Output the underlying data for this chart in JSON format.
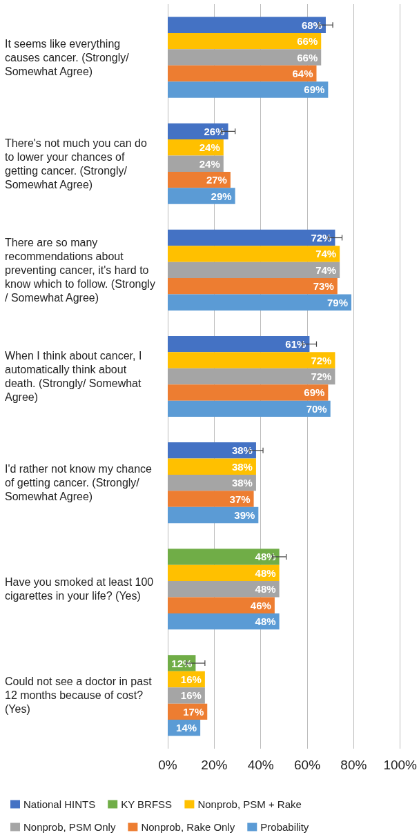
{
  "chart_data": {
    "type": "bar",
    "orientation": "horizontal",
    "categories": [
      "It seems like everything causes cancer. (Strongly/ Somewhat Agree)",
      "There's not much you can do to lower your chances of getting cancer. (Strongly/Somewhat Agree)",
      "There are so many recommendations about preventing cancer, it's hard to know which to follow. (Strongly/ Somewhat Agree)",
      "When I think about cancer, I automatically think about death. (Strongly/ Somewhat Agree)",
      "I'd rather not know my chance of getting cancer. (Strongly/Somewhat Agree)",
      "Have you smoked at least 100 cigarettes in your life? (Yes)",
      "Could not see a doctor in past 12 months because of cost? (Yes)"
    ],
    "series": [
      {
        "name": "National HINTS",
        "color": "#4472c4",
        "values": [
          68,
          26,
          72,
          61,
          38,
          null,
          null
        ],
        "errors": [
          3,
          3,
          3,
          3,
          3,
          null,
          null
        ],
        "value_labels": [
          "68%",
          "26%",
          "72%",
          "61%",
          "38%",
          null,
          null
        ]
      },
      {
        "name": "KY BRFSS",
        "color": "#70ad47",
        "values": [
          null,
          null,
          null,
          null,
          null,
          48,
          12
        ],
        "errors": [
          null,
          null,
          null,
          null,
          null,
          3,
          4
        ],
        "value_labels": [
          null,
          null,
          null,
          null,
          null,
          "48%",
          "12%"
        ]
      },
      {
        "name": "Nonprob, PSM + Rake",
        "color": "#ffc000",
        "values": [
          66,
          24,
          74,
          72,
          38,
          48,
          16
        ],
        "value_labels": [
          "66%",
          "24%",
          "74%",
          "72%",
          "38%",
          "48%",
          "16%"
        ]
      },
      {
        "name": "Nonprob, PSM Only",
        "color": "#a5a5a5",
        "values": [
          66,
          24,
          74,
          72,
          38,
          48,
          16
        ],
        "value_labels": [
          "66%",
          "24%",
          "74%",
          "72%",
          "38%",
          "48%",
          "16%"
        ]
      },
      {
        "name": "Nonprob, Rake Only",
        "color": "#ed7d31",
        "values": [
          64,
          27,
          73,
          69,
          37,
          46,
          17
        ],
        "value_labels": [
          "64%",
          "27%",
          "73%",
          "69%",
          "37%",
          "46%",
          "17%"
        ]
      },
      {
        "name": "Probability",
        "color": "#5b9bd5",
        "values": [
          69,
          29,
          79,
          70,
          39,
          48,
          14
        ],
        "value_labels": [
          "69%",
          "29%",
          "79%",
          "70%",
          "39%",
          "48%",
          "14%"
        ]
      }
    ],
    "xlim": [
      0,
      100
    ],
    "xticks": [
      {
        "value": 0,
        "label": "0%"
      },
      {
        "value": 20,
        "label": "20%"
      },
      {
        "value": 40,
        "label": "40%"
      },
      {
        "value": 60,
        "label": "60%"
      },
      {
        "value": 80,
        "label": "80%"
      },
      {
        "value": 100,
        "label": "100%"
      }
    ],
    "grid": "x",
    "legend": "bottom"
  }
}
